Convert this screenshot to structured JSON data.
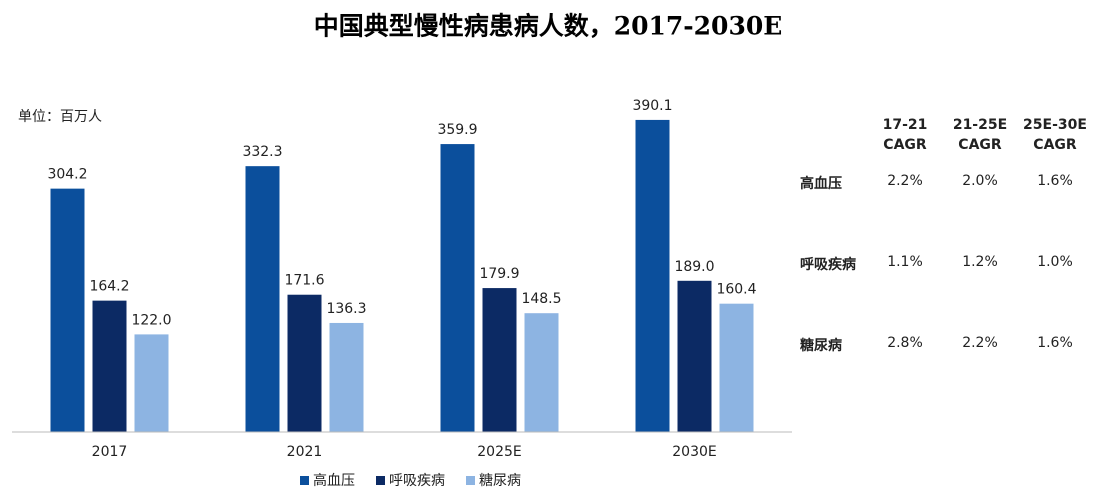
{
  "chart_data": {
    "type": "bar",
    "title": "中国典型慢性病患病人数，2017-2030E",
    "unit_label": "单位：百万人",
    "categories": [
      "2017",
      "2021",
      "2025E",
      "2030E"
    ],
    "series": [
      {
        "name": "高血压",
        "color": "#0b4f9c",
        "values": [
          304.2,
          332.3,
          359.9,
          390.1
        ]
      },
      {
        "name": "呼吸疾病",
        "color": "#0c2a64",
        "values": [
          164.2,
          171.6,
          179.9,
          189.0
        ],
        "value_labels": [
          "164.2",
          "171.6",
          "179.9",
          "189.0"
        ]
      },
      {
        "name": "糖尿病",
        "color": "#8db4e2",
        "values": [
          122.0,
          136.3,
          148.5,
          160.4
        ],
        "value_labels": [
          "122.0",
          "136.3",
          "148.5",
          "160.4"
        ]
      }
    ],
    "ylim": [
      0,
      400
    ],
    "legend": "bottom"
  },
  "table": {
    "columns": [
      "17-21 CAGR",
      "21-25E CAGR",
      "25E-30E CAGR"
    ],
    "rows": [
      [
        "高血压",
        "2.2%",
        "2.0%",
        "1.6%"
      ],
      [
        "呼吸疾病",
        "1.1%",
        "1.2%",
        "1.0%"
      ],
      [
        "糖尿病",
        "2.8%",
        "2.2%",
        "1.6%"
      ]
    ]
  }
}
